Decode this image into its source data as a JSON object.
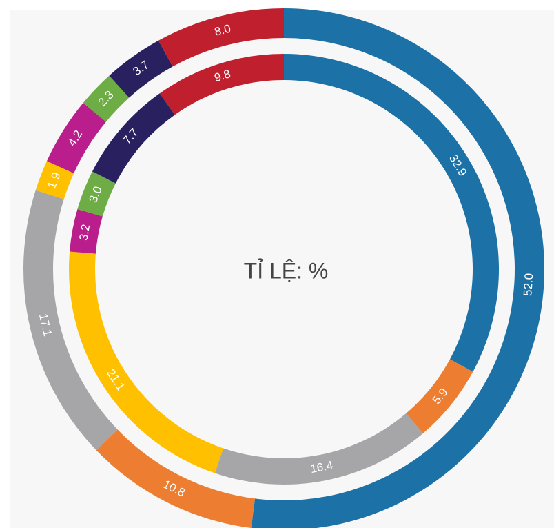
{
  "chart_data": {
    "type": "donut",
    "center_label": "TỈ LỆ: %",
    "series": [
      {
        "values": [
          52.0,
          10.8,
          17.1,
          1.9,
          4.2,
          2.3,
          3.7,
          8.0
        ],
        "value_labels": [
          "52.0",
          "10.8",
          "17.1",
          "1.9",
          "4.2",
          "2.3",
          "3.7",
          "8.0"
        ],
        "colors": [
          "#1c71a6",
          "#ec7d31",
          "#a6a6a8",
          "#ffc000",
          "#b91e8c",
          "#6eac46",
          "#29215f",
          "#c0202e"
        ]
      },
      {
        "values": [
          32.9,
          5.9,
          16.4,
          21.1,
          3.2,
          3.0,
          7.7,
          9.8
        ],
        "value_labels": [
          "32.9",
          "5.9",
          "16.4",
          "21.1",
          "3.2",
          "3.0",
          "7.7",
          "9.8"
        ],
        "colors": [
          "#1c71a6",
          "#ec7d31",
          "#a6a6a8",
          "#ffc000",
          "#b91e8c",
          "#6eac46",
          "#29215f",
          "#c0202e"
        ]
      }
    ]
  }
}
